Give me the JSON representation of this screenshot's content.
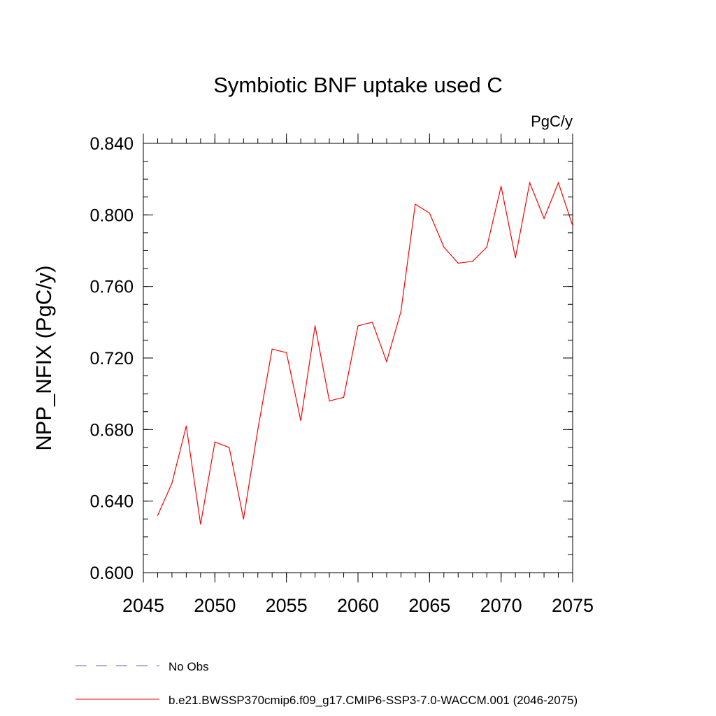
{
  "chart_data": {
    "type": "line",
    "title": "Symbiotic BNF uptake used C",
    "units": "PgC/y",
    "ylabel": "NPP_NFIX  (PgC/y)",
    "xlabel": "",
    "xlim": [
      2045,
      2075
    ],
    "ylim": [
      0.6,
      0.84
    ],
    "x_ticks": [
      2045,
      2050,
      2055,
      2060,
      2065,
      2070,
      2075
    ],
    "x_tick_labels": [
      "2045",
      "2050",
      "2055",
      "2060",
      "2065",
      "2070",
      "2075"
    ],
    "y_ticks": [
      0.6,
      0.64,
      0.68,
      0.72,
      0.76,
      0.8,
      0.84
    ],
    "y_tick_labels": [
      "0.600",
      "0.640",
      "0.680",
      "0.720",
      "0.760",
      "0.800",
      "0.840"
    ],
    "grid": false,
    "legend_position": "bottom",
    "series": [
      {
        "name": "b.e21.BWSSP370cmip6.f09_g17.CMIP6-SSP3-7.0-WACCM.001 (2046-2075)",
        "color": "#ff0000",
        "dash": "solid",
        "x": [
          2046,
          2047,
          2048,
          2049,
          2050,
          2051,
          2052,
          2053,
          2054,
          2055,
          2056,
          2057,
          2058,
          2059,
          2060,
          2061,
          2062,
          2063,
          2064,
          2065,
          2066,
          2067,
          2068,
          2069,
          2070,
          2071,
          2072,
          2073,
          2074,
          2075
        ],
        "values": [
          0.632,
          0.65,
          0.682,
          0.627,
          0.673,
          0.67,
          0.63,
          0.68,
          0.725,
          0.723,
          0.685,
          0.738,
          0.696,
          0.698,
          0.738,
          0.74,
          0.718,
          0.746,
          0.806,
          0.801,
          0.782,
          0.773,
          0.774,
          0.782,
          0.816,
          0.776,
          0.818,
          0.798,
          0.818,
          0.794
        ]
      }
    ],
    "legend": [
      {
        "label": "No Obs",
        "color": "#6a5acd",
        "dash": "dashed"
      },
      {
        "label": "b.e21.BWSSP370cmip6.f09_g17.CMIP6-SSP3-7.0-WACCM.001 (2046-2075)",
        "color": "#ff0000",
        "dash": "solid"
      }
    ]
  }
}
